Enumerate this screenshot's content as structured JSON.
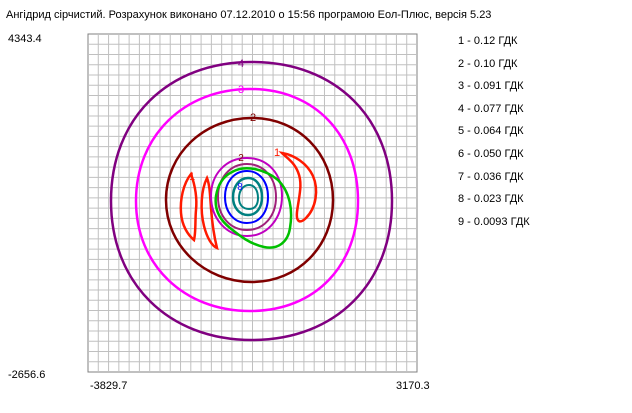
{
  "title": "Ангідрид сірчистий. Розрахунок виконано 07.12.2010 о 15:56 програмою Еол-Плюс, версія 5.23",
  "chart_data": {
    "type": "contour",
    "title": "Ангідрид сірчистий. Розрахунок виконано 07.12.2010 о 15:56 програмою Еол-Плюс, версія 5.23",
    "xlim": [
      -3829.7,
      3170.3
    ],
    "ylim": [
      -2656.6,
      4343.4
    ],
    "x_tick_labels": [
      "-3829.7",
      "3170.3"
    ],
    "y_tick_labels": [
      "4343.4",
      "-2656.6"
    ],
    "grid": true,
    "legend_position": "right",
    "levels": [
      {
        "id": "1",
        "label": "1 - 0.12 ГДК",
        "value": 0.12,
        "color": "#ff1a00"
      },
      {
        "id": "2",
        "label": "2 - 0.10 ГДК",
        "value": 0.1,
        "color": "#800000"
      },
      {
        "id": "3",
        "label": "3 - 0.091 ГДК",
        "value": 0.091,
        "color": "#ff00ff"
      },
      {
        "id": "4",
        "label": "4 - 0.077 ГДК",
        "value": 0.077,
        "color": "#800080"
      },
      {
        "id": "5",
        "label": "5 - 0.064 ГДК",
        "value": 0.064,
        "color": "#c000c0"
      },
      {
        "id": "6",
        "label": "6 - 0.050 ГДК",
        "value": 0.05,
        "color": "#a0207a"
      },
      {
        "id": "7",
        "label": "7 - 0.036 ГДК",
        "value": 0.036,
        "color": "#00c000"
      },
      {
        "id": "8",
        "label": "8 - 0.023 ГДК",
        "value": 0.023,
        "color": "#0000ff"
      },
      {
        "id": "9",
        "label": "9 - 0.0093 ГДК",
        "value": 0.0093,
        "color": "#008080"
      }
    ]
  }
}
